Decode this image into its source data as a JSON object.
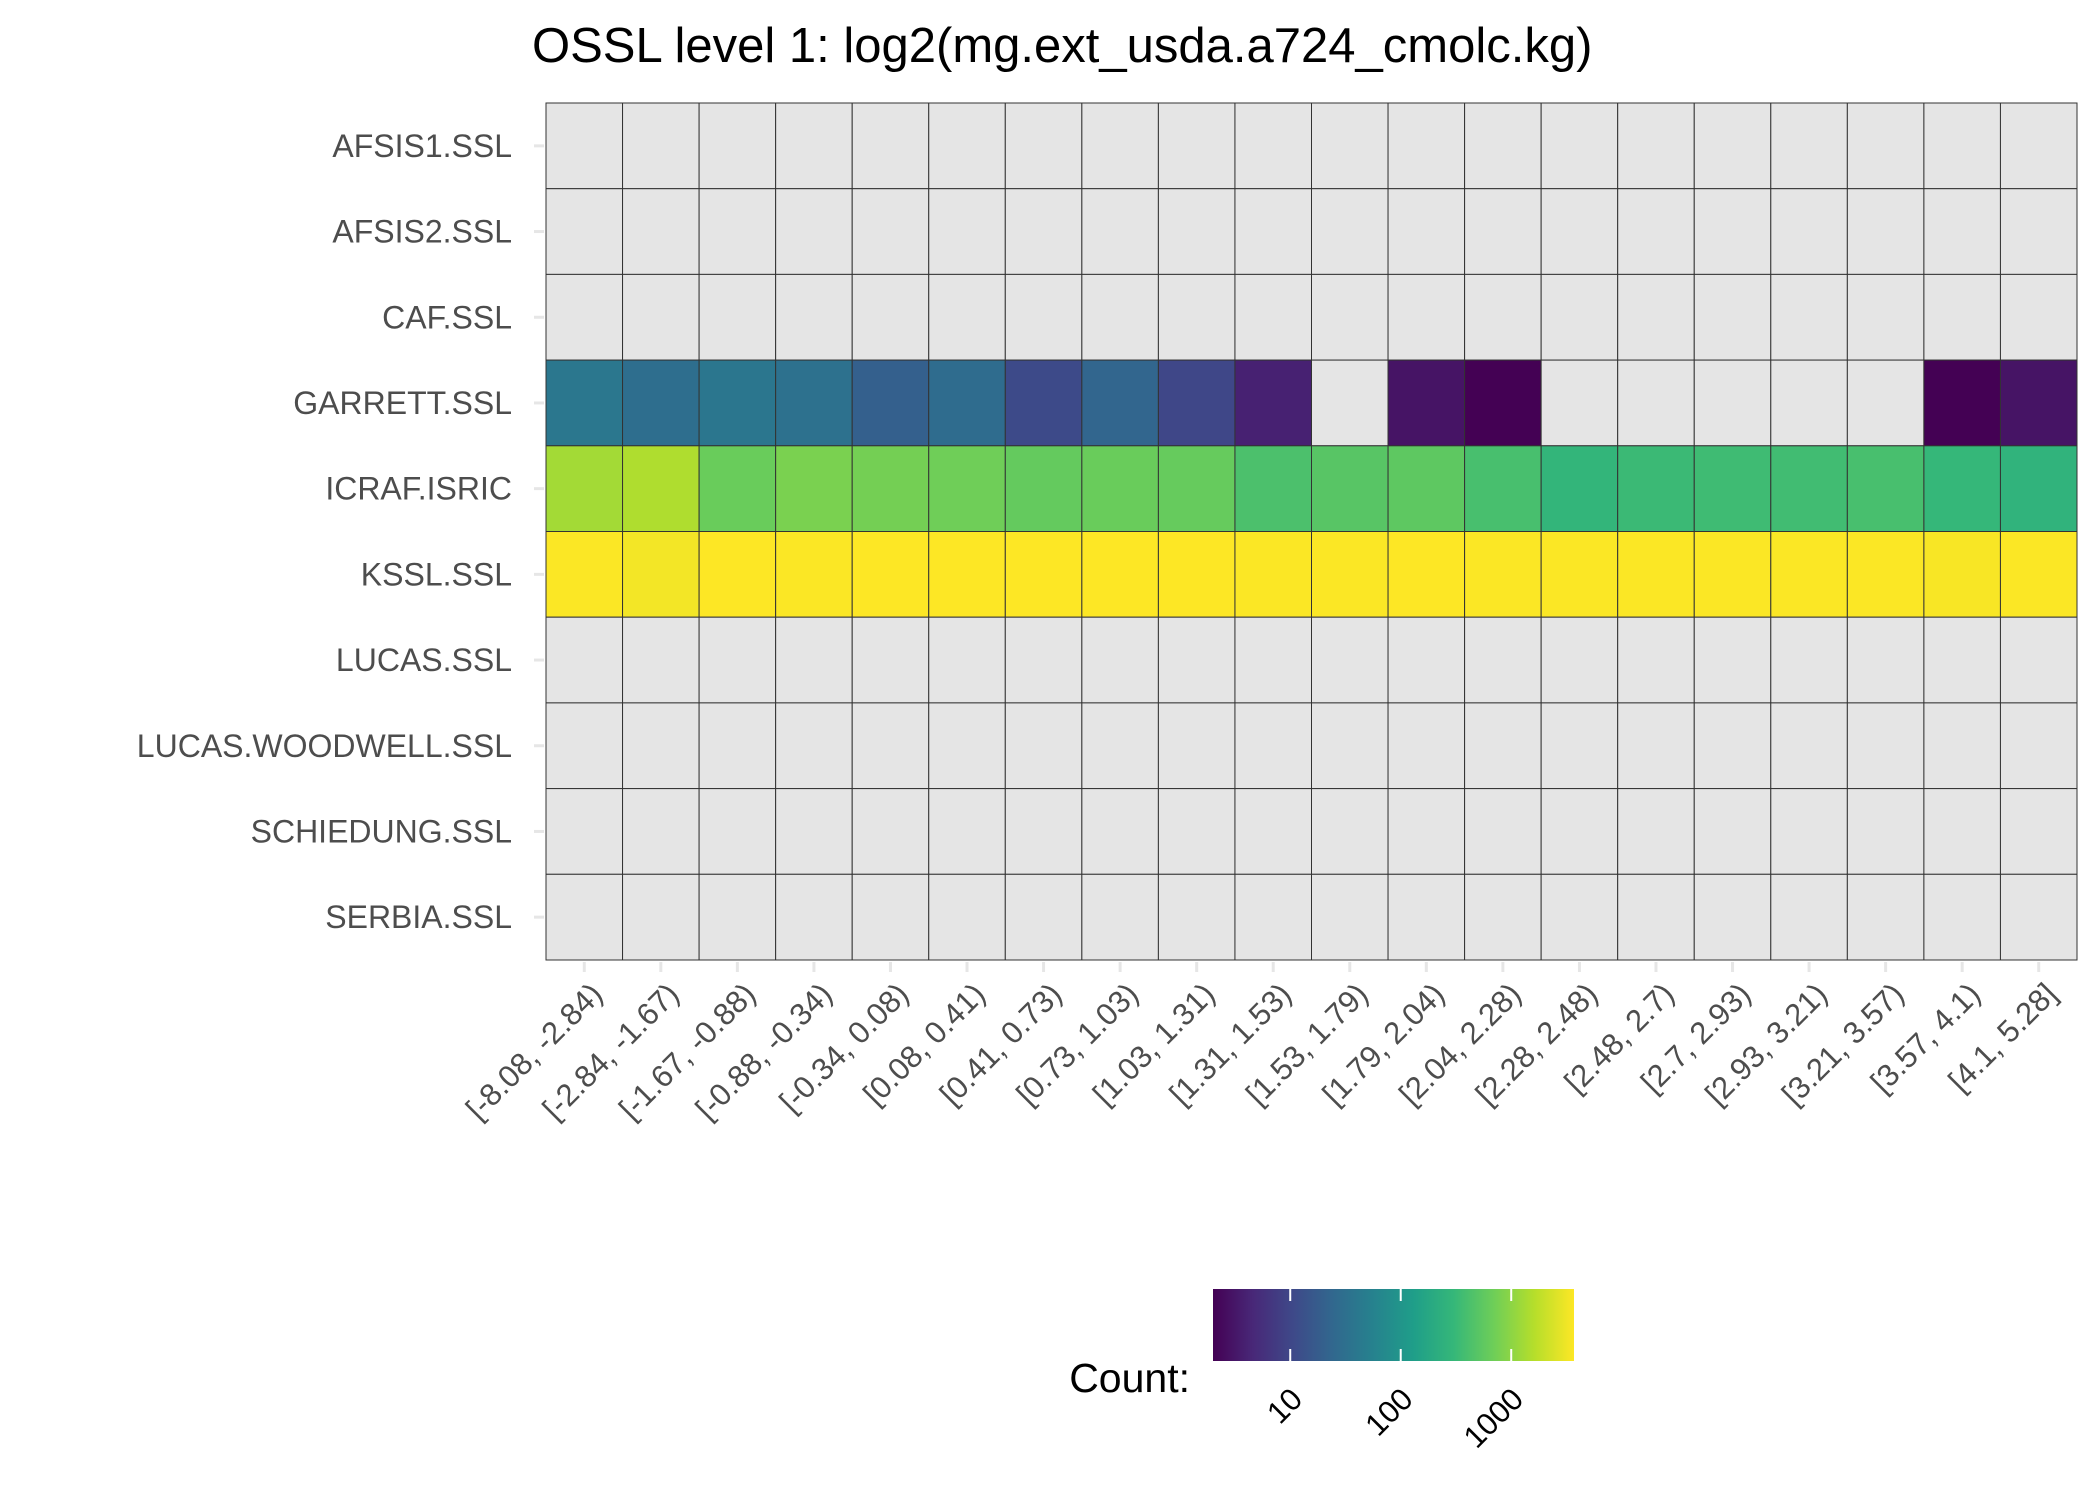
{
  "chart_data": {
    "type": "heatmap",
    "title": "OSSL level 1: log2(mg.ext_usda.a724_cmolc.kg)",
    "xlabel": "",
    "ylabel": "",
    "x_categories": [
      "[-8.08, -2.84)",
      "[-2.84, -1.67)",
      "[-1.67, -0.88)",
      "[-0.88, -0.34)",
      "[-0.34, 0.08)",
      "[0.08, 0.41)",
      "[0.41, 0.73)",
      "[0.73, 1.03)",
      "[1.03, 1.31)",
      "[1.31, 1.53)",
      "[1.53, 1.79)",
      "[1.79, 2.04)",
      "[2.04, 2.28)",
      "[2.28, 2.48)",
      "[2.48, 2.7)",
      "[2.7, 2.93)",
      "[2.93, 3.21)",
      "[3.21, 3.57)",
      "[3.57, 4.1)",
      "[4.1, 5.28]"
    ],
    "y_categories": [
      "AFSIS1.SSL",
      "AFSIS2.SSL",
      "CAF.SSL",
      "GARRETT.SSL",
      "ICRAF.ISRIC",
      "KSSL.SSL",
      "LUCAS.SSL",
      "LUCAS.WOODWELL.SSL",
      "SCHIEDUNG.SSL",
      "SERBIA.SSL"
    ],
    "values": [
      [
        null,
        null,
        null,
        null,
        null,
        null,
        null,
        null,
        null,
        null,
        null,
        null,
        null,
        null,
        null,
        null,
        null,
        null,
        null,
        null
      ],
      [
        null,
        null,
        null,
        null,
        null,
        null,
        null,
        null,
        null,
        null,
        null,
        null,
        null,
        null,
        null,
        null,
        null,
        null,
        null,
        null
      ],
      [
        null,
        null,
        null,
        null,
        null,
        null,
        null,
        null,
        null,
        null,
        null,
        null,
        null,
        null,
        null,
        null,
        null,
        null,
        null,
        null
      ],
      [
        40,
        30,
        38,
        33,
        20,
        28,
        11,
        23,
        10,
        4,
        null,
        3,
        2,
        null,
        null,
        null,
        null,
        null,
        2,
        3
      ],
      [
        1300,
        1500,
        650,
        800,
        750,
        700,
        600,
        650,
        620,
        420,
        500,
        550,
        400,
        280,
        330,
        350,
        360,
        400,
        300,
        260
      ],
      [
        3600,
        3300,
        3700,
        3600,
        3700,
        3700,
        3700,
        3700,
        3700,
        3600,
        3600,
        3700,
        3600,
        3600,
        3600,
        3600,
        3600,
        3600,
        3500,
        3600
      ],
      [
        null,
        null,
        null,
        null,
        null,
        null,
        null,
        null,
        null,
        null,
        null,
        null,
        null,
        null,
        null,
        null,
        null,
        null,
        null,
        null
      ],
      [
        null,
        null,
        null,
        null,
        null,
        null,
        null,
        null,
        null,
        null,
        null,
        null,
        null,
        null,
        null,
        null,
        null,
        null,
        null,
        null
      ],
      [
        null,
        null,
        null,
        null,
        null,
        null,
        null,
        null,
        null,
        null,
        null,
        null,
        null,
        null,
        null,
        null,
        null,
        null,
        null,
        null
      ],
      [
        null,
        null,
        null,
        null,
        null,
        null,
        null,
        null,
        null,
        null,
        null,
        null,
        null,
        null,
        null,
        null,
        null,
        null,
        null,
        null
      ]
    ],
    "missing_color": "#e5e5e5",
    "color_scale": "viridis",
    "color_scale_log": true,
    "color_range": [
      2,
      3700
    ],
    "legend": {
      "title": "Count:",
      "ticks": [
        10,
        100,
        1000
      ],
      "tick_labels": [
        "10",
        "100",
        "1000"
      ],
      "position": "bottom"
    },
    "grid": true
  }
}
